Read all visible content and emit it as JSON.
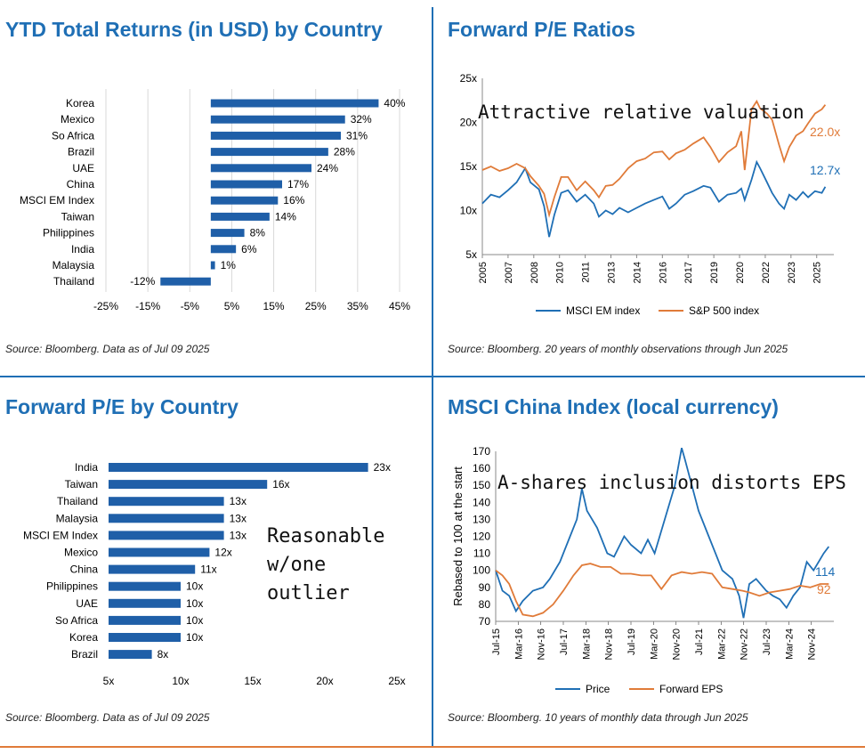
{
  "panels": {
    "ytd": {
      "title": "YTD Total Returns (in USD) by Country",
      "source": "Source: Bloomberg. Data as of Jul 09 2025"
    },
    "pe_ratios": {
      "title": "Forward P/E Ratios",
      "source": "Source: Bloomberg. 20 years of monthly observations through Jun 2025",
      "annotation": "Attractive relative valuation"
    },
    "pe_country": {
      "title": "Forward P/E by Country",
      "source": "Source: Bloomberg. Data as of Jul 09 2025",
      "annotation": [
        "Reasonable",
        "w/one",
        "outlier"
      ]
    },
    "china": {
      "title": "MSCI China Index (local currency)",
      "source": "Source: Bloomberg. 10 years of monthly data through Jun 2025",
      "annotation": "A-shares inclusion distorts EPS"
    }
  },
  "colors": {
    "blue": "#1f6fb5",
    "orange": "#e07b39",
    "title": "#1f6fb5",
    "bar": "#1f5fa8"
  },
  "chart_data": [
    {
      "id": "ytd",
      "type": "bar",
      "orientation": "horizontal",
      "title": "YTD Total Returns (in USD) by Country",
      "categories": [
        "Korea",
        "Mexico",
        "So Africa",
        "Brazil",
        "UAE",
        "China",
        "MSCI EM Index",
        "Taiwan",
        "Philippines",
        "India",
        "Malaysia",
        "Thailand"
      ],
      "values": [
        40,
        32,
        31,
        28,
        24,
        17,
        16,
        14,
        8,
        6,
        1,
        -12
      ],
      "labels": [
        "40%",
        "32%",
        "31%",
        "28%",
        "24%",
        "17%",
        "16%",
        "14%",
        "8%",
        "6%",
        "1%",
        "-12%"
      ],
      "xlim": [
        -25,
        45
      ],
      "ticks": [
        "-25%",
        "-15%",
        "-5%",
        "5%",
        "15%",
        "25%",
        "35%",
        "45%"
      ],
      "tick_values": [
        -25,
        -15,
        -5,
        5,
        15,
        25,
        35,
        45
      ],
      "grid": true
    },
    {
      "id": "pe_ratios",
      "type": "line",
      "title": "Forward P/E Ratios",
      "ylim": [
        5,
        25
      ],
      "yticks": [
        "5x",
        "10x",
        "15x",
        "20x",
        "25x"
      ],
      "ytick_values": [
        5,
        10,
        15,
        20,
        25
      ],
      "xlim": [
        2005.0,
        2025.5
      ],
      "xticks": [
        "2005",
        "2007",
        "2008",
        "2010",
        "2011",
        "2013",
        "2014",
        "2016",
        "2017",
        "2019",
        "2020",
        "2022",
        "2023",
        "2025"
      ],
      "xtick_values": [
        2005.0,
        2006.5,
        2008.0,
        2009.5,
        2011.0,
        2012.5,
        2014.0,
        2015.5,
        2017.0,
        2018.5,
        2020.0,
        2021.5,
        2023.0,
        2024.5
      ],
      "series": [
        {
          "name": "MSCI EM index",
          "color": "#1f6fb5",
          "end_label": "12.7x",
          "points": [
            [
              2005.0,
              10.8
            ],
            [
              2005.5,
              11.8
            ],
            [
              2006.0,
              11.5
            ],
            [
              2006.5,
              12.3
            ],
            [
              2007.0,
              13.2
            ],
            [
              2007.5,
              14.8
            ],
            [
              2007.8,
              13.2
            ],
            [
              2008.3,
              12.4
            ],
            [
              2008.6,
              10.5
            ],
            [
              2008.9,
              7.0
            ],
            [
              2009.2,
              9.5
            ],
            [
              2009.6,
              12.0
            ],
            [
              2010.0,
              12.3
            ],
            [
              2010.5,
              11.0
            ],
            [
              2011.0,
              11.8
            ],
            [
              2011.5,
              10.8
            ],
            [
              2011.8,
              9.3
            ],
            [
              2012.2,
              10.0
            ],
            [
              2012.6,
              9.6
            ],
            [
              2013.0,
              10.3
            ],
            [
              2013.5,
              9.8
            ],
            [
              2014.0,
              10.3
            ],
            [
              2014.5,
              10.8
            ],
            [
              2015.0,
              11.2
            ],
            [
              2015.5,
              11.6
            ],
            [
              2015.9,
              10.2
            ],
            [
              2016.3,
              10.8
            ],
            [
              2016.8,
              11.8
            ],
            [
              2017.3,
              12.2
            ],
            [
              2017.9,
              12.8
            ],
            [
              2018.3,
              12.6
            ],
            [
              2018.8,
              11.0
            ],
            [
              2019.3,
              11.8
            ],
            [
              2019.8,
              12.0
            ],
            [
              2020.1,
              12.5
            ],
            [
              2020.3,
              11.2
            ],
            [
              2020.7,
              13.5
            ],
            [
              2021.0,
              15.5
            ],
            [
              2021.2,
              14.8
            ],
            [
              2021.6,
              13.2
            ],
            [
              2021.9,
              12.0
            ],
            [
              2022.3,
              10.8
            ],
            [
              2022.6,
              10.2
            ],
            [
              2022.9,
              11.8
            ],
            [
              2023.3,
              11.2
            ],
            [
              2023.7,
              12.1
            ],
            [
              2024.0,
              11.5
            ],
            [
              2024.4,
              12.2
            ],
            [
              2024.8,
              12.0
            ],
            [
              2025.0,
              12.7
            ]
          ]
        },
        {
          "name": "S&P 500 index",
          "color": "#e07b39",
          "end_label": "22.0x",
          "points": [
            [
              2005.0,
              14.6
            ],
            [
              2005.5,
              15.0
            ],
            [
              2006.0,
              14.5
            ],
            [
              2006.5,
              14.8
            ],
            [
              2007.0,
              15.3
            ],
            [
              2007.5,
              14.8
            ],
            [
              2007.8,
              13.9
            ],
            [
              2008.3,
              12.8
            ],
            [
              2008.6,
              11.9
            ],
            [
              2008.9,
              9.5
            ],
            [
              2009.2,
              11.5
            ],
            [
              2009.6,
              13.8
            ],
            [
              2010.0,
              13.8
            ],
            [
              2010.5,
              12.3
            ],
            [
              2011.0,
              13.3
            ],
            [
              2011.5,
              12.3
            ],
            [
              2011.8,
              11.5
            ],
            [
              2012.2,
              12.8
            ],
            [
              2012.6,
              12.9
            ],
            [
              2013.0,
              13.6
            ],
            [
              2013.5,
              14.8
            ],
            [
              2014.0,
              15.6
            ],
            [
              2014.5,
              15.9
            ],
            [
              2015.0,
              16.6
            ],
            [
              2015.5,
              16.7
            ],
            [
              2015.9,
              15.8
            ],
            [
              2016.3,
              16.5
            ],
            [
              2016.8,
              16.9
            ],
            [
              2017.3,
              17.6
            ],
            [
              2017.9,
              18.3
            ],
            [
              2018.3,
              17.2
            ],
            [
              2018.8,
              15.5
            ],
            [
              2019.3,
              16.6
            ],
            [
              2019.8,
              17.3
            ],
            [
              2020.1,
              19.0
            ],
            [
              2020.3,
              14.6
            ],
            [
              2020.7,
              21.5
            ],
            [
              2021.0,
              22.4
            ],
            [
              2021.2,
              21.6
            ],
            [
              2021.6,
              21.0
            ],
            [
              2021.9,
              20.3
            ],
            [
              2022.3,
              17.5
            ],
            [
              2022.6,
              15.6
            ],
            [
              2022.9,
              17.2
            ],
            [
              2023.3,
              18.5
            ],
            [
              2023.7,
              19.0
            ],
            [
              2024.0,
              19.9
            ],
            [
              2024.4,
              21.0
            ],
            [
              2024.8,
              21.5
            ],
            [
              2025.0,
              22.0
            ]
          ]
        }
      ]
    },
    {
      "id": "pe_country",
      "type": "bar",
      "orientation": "horizontal",
      "title": "Forward P/E by Country",
      "categories": [
        "India",
        "Taiwan",
        "Thailand",
        "Malaysia",
        "MSCI EM Index",
        "Mexico",
        "China",
        "Philippines",
        "UAE",
        "So Africa",
        "Korea",
        "Brazil"
      ],
      "values": [
        23,
        16,
        13,
        13,
        13,
        12,
        11,
        10,
        10,
        10,
        10,
        8
      ],
      "labels": [
        "23x",
        "16x",
        "13x",
        "13x",
        "13x",
        "12x",
        "11x",
        "10x",
        "10x",
        "10x",
        "10x",
        "8x"
      ],
      "xlim": [
        5,
        25
      ],
      "ticks": [
        "5x",
        "10x",
        "15x",
        "20x",
        "25x"
      ],
      "tick_values": [
        5,
        10,
        15,
        20,
        25
      ],
      "grid": false
    },
    {
      "id": "china",
      "type": "line",
      "title": "MSCI China Index (local currency)",
      "ylabel": "Rebased to 100 at the start",
      "ylim": [
        70,
        170
      ],
      "yticks": [
        "70",
        "80",
        "90",
        "100",
        "110",
        "120",
        "130",
        "140",
        "150",
        "160",
        "170"
      ],
      "ytick_values": [
        70,
        80,
        90,
        100,
        110,
        120,
        130,
        140,
        150,
        160,
        170
      ],
      "xlim": [
        2015.5,
        2025.5
      ],
      "xticks": [
        "Jul-15",
        "Mar-16",
        "Nov-16",
        "Jul-17",
        "Mar-18",
        "Nov-18",
        "Jul-19",
        "Mar-20",
        "Nov-20",
        "Jul-21",
        "Mar-22",
        "Nov-22",
        "Jul-23",
        "Mar-24",
        "Nov-24"
      ],
      "xtick_values": [
        2015.5,
        2016.17,
        2016.83,
        2017.5,
        2018.17,
        2018.83,
        2019.5,
        2020.17,
        2020.83,
        2021.5,
        2022.17,
        2022.83,
        2023.5,
        2024.17,
        2024.83
      ],
      "series": [
        {
          "name": "Price",
          "color": "#1f6fb5",
          "end_label": "114",
          "points": [
            [
              2015.5,
              100
            ],
            [
              2015.7,
              88
            ],
            [
              2015.9,
              85
            ],
            [
              2016.1,
              76
            ],
            [
              2016.3,
              82
            ],
            [
              2016.6,
              88
            ],
            [
              2016.9,
              90
            ],
            [
              2017.1,
              95
            ],
            [
              2017.4,
              105
            ],
            [
              2017.7,
              120
            ],
            [
              2017.9,
              130
            ],
            [
              2018.05,
              148
            ],
            [
              2018.2,
              135
            ],
            [
              2018.5,
              125
            ],
            [
              2018.8,
              110
            ],
            [
              2019.0,
              108
            ],
            [
              2019.3,
              120
            ],
            [
              2019.5,
              115
            ],
            [
              2019.8,
              110
            ],
            [
              2020.0,
              118
            ],
            [
              2020.2,
              110
            ],
            [
              2020.5,
              130
            ],
            [
              2020.8,
              150
            ],
            [
              2021.0,
              172
            ],
            [
              2021.1,
              165
            ],
            [
              2021.3,
              150
            ],
            [
              2021.5,
              135
            ],
            [
              2021.8,
              120
            ],
            [
              2022.0,
              110
            ],
            [
              2022.2,
              100
            ],
            [
              2022.5,
              95
            ],
            [
              2022.7,
              85
            ],
            [
              2022.83,
              72
            ],
            [
              2023.0,
              92
            ],
            [
              2023.2,
              95
            ],
            [
              2023.5,
              88
            ],
            [
              2023.7,
              85
            ],
            [
              2023.9,
              83
            ],
            [
              2024.1,
              78
            ],
            [
              2024.3,
              85
            ],
            [
              2024.5,
              90
            ],
            [
              2024.7,
              105
            ],
            [
              2024.9,
              100
            ],
            [
              2025.2,
              110
            ],
            [
              2025.35,
              114
            ]
          ]
        },
        {
          "name": "Forward EPS",
          "color": "#e07b39",
          "end_label": "92",
          "points": [
            [
              2015.5,
              100
            ],
            [
              2015.7,
              97
            ],
            [
              2015.9,
              92
            ],
            [
              2016.1,
              82
            ],
            [
              2016.3,
              74
            ],
            [
              2016.6,
              73
            ],
            [
              2016.9,
              75
            ],
            [
              2017.2,
              80
            ],
            [
              2017.5,
              88
            ],
            [
              2017.8,
              97
            ],
            [
              2018.05,
              103
            ],
            [
              2018.3,
              104
            ],
            [
              2018.6,
              102
            ],
            [
              2018.9,
              102
            ],
            [
              2019.2,
              98
            ],
            [
              2019.5,
              98
            ],
            [
              2019.8,
              97
            ],
            [
              2020.1,
              97
            ],
            [
              2020.4,
              89
            ],
            [
              2020.7,
              97
            ],
            [
              2021.0,
              99
            ],
            [
              2021.3,
              98
            ],
            [
              2021.6,
              99
            ],
            [
              2021.9,
              98
            ],
            [
              2022.2,
              90
            ],
            [
              2022.5,
              89
            ],
            [
              2022.8,
              88
            ],
            [
              2023.0,
              87
            ],
            [
              2023.3,
              85
            ],
            [
              2023.6,
              87
            ],
            [
              2023.9,
              88
            ],
            [
              2024.2,
              89
            ],
            [
              2024.5,
              91
            ],
            [
              2024.8,
              90
            ],
            [
              2025.1,
              92
            ],
            [
              2025.35,
              92
            ]
          ]
        }
      ]
    }
  ]
}
